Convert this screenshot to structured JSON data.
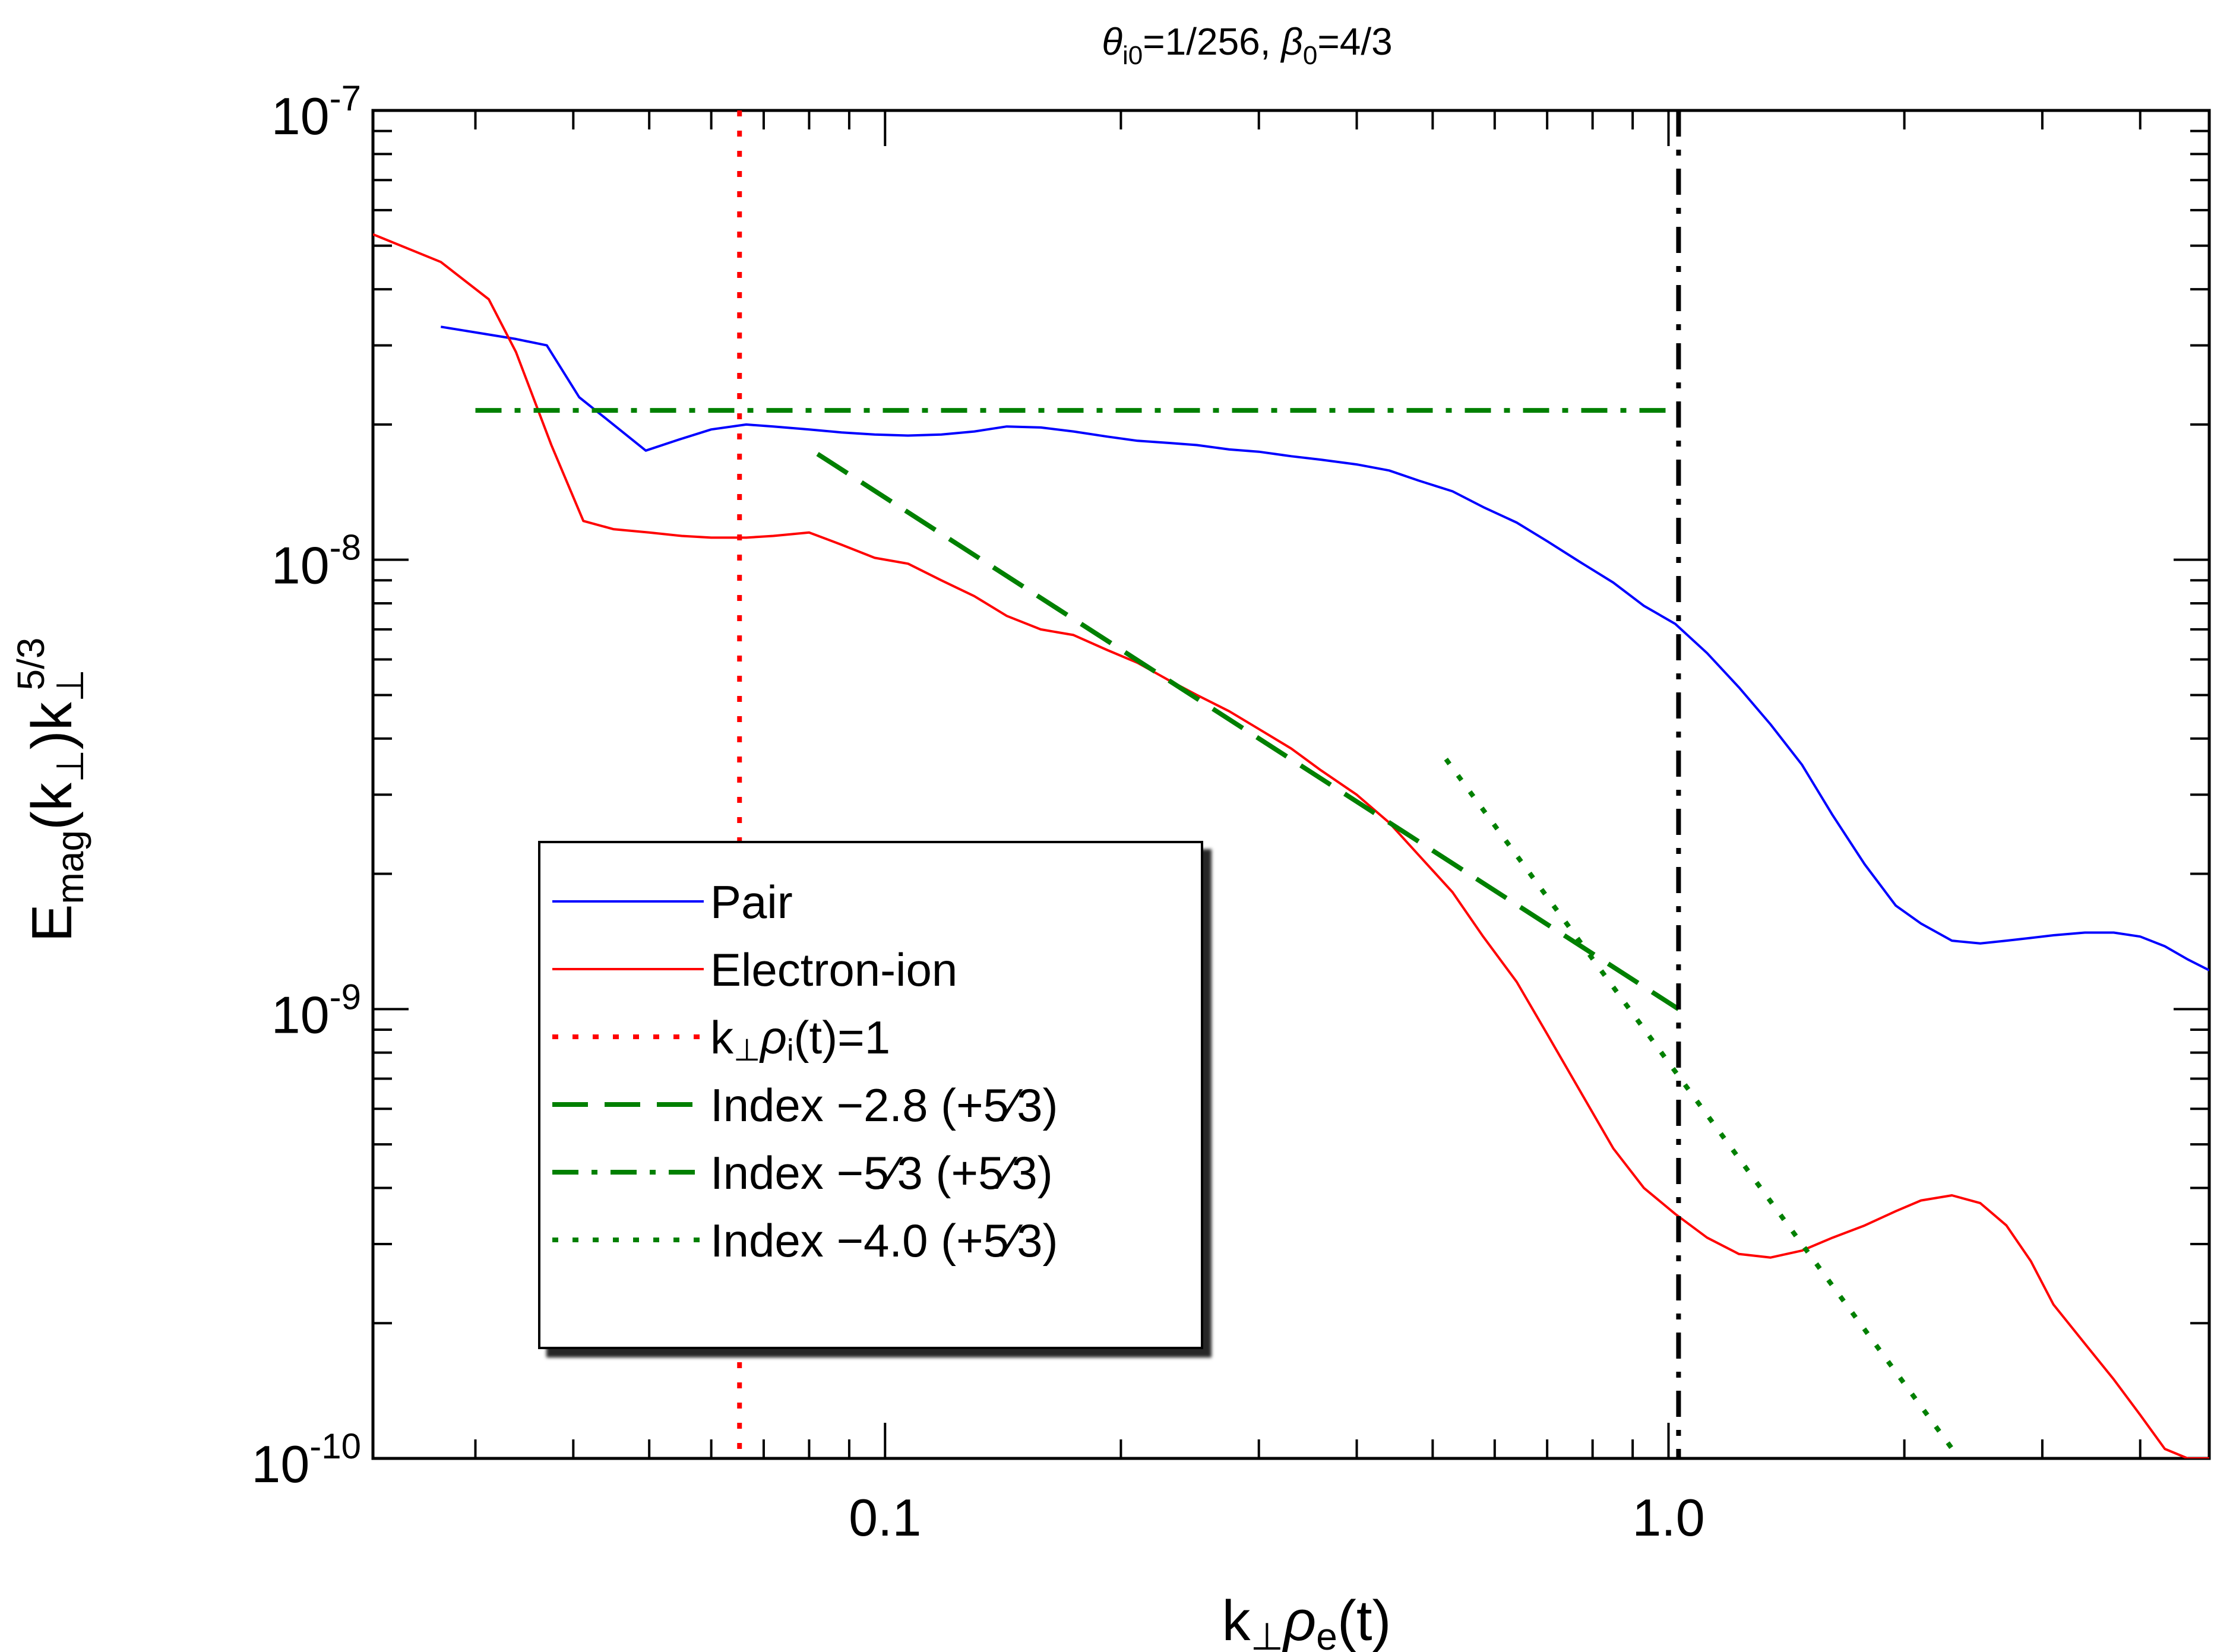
{
  "chart_data": {
    "type": "line",
    "title": "θi0=1/256, β0=4/3",
    "title_parts": {
      "theta": "θ",
      "theta_sub": "i0",
      "theta_val": "=1/256, ",
      "beta": "β",
      "beta_sub": "0",
      "beta_val": "=4/3"
    },
    "xlabel": "k⊥ρe(t)",
    "xlabel_parts": {
      "k": "k",
      "k_sub": "⊥",
      "rho": "ρ",
      "rho_sub": "e",
      "tail": "(t)"
    },
    "ylabel": "Emag(k⊥)k⊥^5/3",
    "ylabel_parts": {
      "E": "E",
      "E_sub": "mag",
      "mid": "(k",
      "mid_sub": "⊥",
      "close": ")k",
      "k_sub": "⊥",
      "k_sup": "5/3"
    },
    "x_scale": "log",
    "y_scale": "log",
    "xlim": [
      0.0222,
      4.9
    ],
    "ylim": [
      1e-10,
      1e-07
    ],
    "x_tick_labels": [
      {
        "value": 0.1,
        "label": "0.1"
      },
      {
        "value": 1.0,
        "label": "1.0"
      }
    ],
    "y_tick_labels": [
      {
        "value": 1e-07,
        "base": "10",
        "exp": "-7"
      },
      {
        "value": 1e-08,
        "base": "10",
        "exp": "-8"
      },
      {
        "value": 1e-09,
        "base": "10",
        "exp": "-9"
      },
      {
        "value": 1e-10,
        "base": "10",
        "exp": "-10"
      }
    ],
    "grid": false,
    "legend_position": "lower-left",
    "series": [
      {
        "name": "Pair",
        "color": "#0000ff",
        "style": "solid",
        "x": [
          0.0271,
          0.0302,
          0.0338,
          0.037,
          0.0407,
          0.045,
          0.0495,
          0.0545,
          0.06,
          0.0665,
          0.072,
          0.08,
          0.088,
          0.097,
          0.107,
          0.118,
          0.13,
          0.143,
          0.158,
          0.174,
          0.192,
          0.21,
          0.23,
          0.25,
          0.275,
          0.3,
          0.33,
          0.36,
          0.4,
          0.44,
          0.48,
          0.53,
          0.58,
          0.64,
          0.7,
          0.77,
          0.85,
          0.93,
          1.02,
          1.12,
          1.23,
          1.35,
          1.48,
          1.62,
          1.78,
          1.95,
          2.1,
          2.3,
          2.5,
          2.7,
          2.9,
          3.1,
          3.4,
          3.7,
          4.0,
          4.3,
          4.6,
          4.9
        ],
        "y": [
          3.3e-08,
          3.2e-08,
          3.1e-08,
          3e-08,
          2.3e-08,
          2e-08,
          1.75e-08,
          1.85e-08,
          1.95e-08,
          2e-08,
          1.98e-08,
          1.95e-08,
          1.92e-08,
          1.9e-08,
          1.89e-08,
          1.9e-08,
          1.93e-08,
          1.98e-08,
          1.97e-08,
          1.93e-08,
          1.88e-08,
          1.84e-08,
          1.82e-08,
          1.8e-08,
          1.76e-08,
          1.74e-08,
          1.7e-08,
          1.67e-08,
          1.63e-08,
          1.58e-08,
          1.5e-08,
          1.42e-08,
          1.31e-08,
          1.21e-08,
          1.1e-08,
          9.9e-09,
          8.9e-09,
          7.9e-09,
          7.2e-09,
          6.2e-09,
          5.2e-09,
          4.3e-09,
          3.5e-09,
          2.7e-09,
          2.1e-09,
          1.7e-09,
          1.55e-09,
          1.42e-09,
          1.4e-09,
          1.42e-09,
          1.44e-09,
          1.46e-09,
          1.48e-09,
          1.48e-09,
          1.45e-09,
          1.38e-09,
          1.29e-09,
          1.22e-09
        ]
      },
      {
        "name": "Electron-ion",
        "color": "#ff0000",
        "style": "solid",
        "x": [
          0.0222,
          0.0271,
          0.0312,
          0.0338,
          0.0375,
          0.0412,
          0.045,
          0.05,
          0.055,
          0.06,
          0.0665,
          0.072,
          0.08,
          0.088,
          0.097,
          0.107,
          0.118,
          0.13,
          0.143,
          0.158,
          0.174,
          0.192,
          0.21,
          0.23,
          0.25,
          0.275,
          0.3,
          0.33,
          0.36,
          0.4,
          0.44,
          0.48,
          0.53,
          0.58,
          0.64,
          0.7,
          0.77,
          0.85,
          0.93,
          1.02,
          1.12,
          1.23,
          1.35,
          1.48,
          1.62,
          1.78,
          1.95,
          2.1,
          2.3,
          2.5,
          2.7,
          2.9,
          3.1,
          3.4,
          3.7,
          4.0,
          4.3,
          4.6,
          4.9
        ],
        "y": [
          5.3e-08,
          4.6e-08,
          3.8e-08,
          2.9e-08,
          1.8e-08,
          1.22e-08,
          1.17e-08,
          1.15e-08,
          1.13e-08,
          1.12e-08,
          1.12e-08,
          1.13e-08,
          1.15e-08,
          1.08e-08,
          1.01e-08,
          9.8e-09,
          9e-09,
          8.3e-09,
          7.5e-09,
          7e-09,
          6.8e-09,
          6.3e-09,
          5.9e-09,
          5.4e-09,
          5e-09,
          4.6e-09,
          4.2e-09,
          3.8e-09,
          3.4e-09,
          3e-09,
          2.6e-09,
          2.2e-09,
          1.82e-09,
          1.45e-09,
          1.15e-09,
          8.8e-10,
          6.6e-10,
          4.9e-10,
          4e-10,
          3.5e-10,
          3.1e-10,
          2.85e-10,
          2.8e-10,
          2.9e-10,
          3.1e-10,
          3.3e-10,
          3.55e-10,
          3.75e-10,
          3.85e-10,
          3.7e-10,
          3.3e-10,
          2.75e-10,
          2.2e-10,
          1.8e-10,
          1.5e-10,
          1.25e-10,
          1.05e-10,
          1e-10,
          1e-10
        ]
      },
      {
        "name": "k⊥ρi(t)=1",
        "color": "#ff0000",
        "style": "dotted",
        "legend_parts": {
          "k": "k",
          "k_sub": "⊥",
          "rho": "ρ",
          "rho_sub": "i",
          "tail": "(t)=1"
        },
        "x_const": 0.0652
      },
      {
        "name": "Index −2.8 (+5⁄3)",
        "color": "#008000",
        "style": "dashed",
        "x": [
          0.082,
          1.03
        ],
        "y": [
          1.72e-08,
          1e-09
        ]
      },
      {
        "name": "Index −5⁄3 (+5⁄3)",
        "color": "#008000",
        "style": "dashdot",
        "x": [
          0.03,
          1.03
        ],
        "y": [
          2.15e-08,
          2.15e-08
        ]
      },
      {
        "name": "Index −4.0 (+5⁄3)",
        "color": "#008000",
        "style": "dotted",
        "x": [
          0.52,
          2.35
        ],
        "y": [
          3.6e-09,
          1e-10
        ]
      },
      {
        "name": "k⊥ρe(t)=1 marker",
        "color": "#000000",
        "style": "dashdot",
        "x_const": 1.03,
        "in_legend": false
      }
    ]
  }
}
